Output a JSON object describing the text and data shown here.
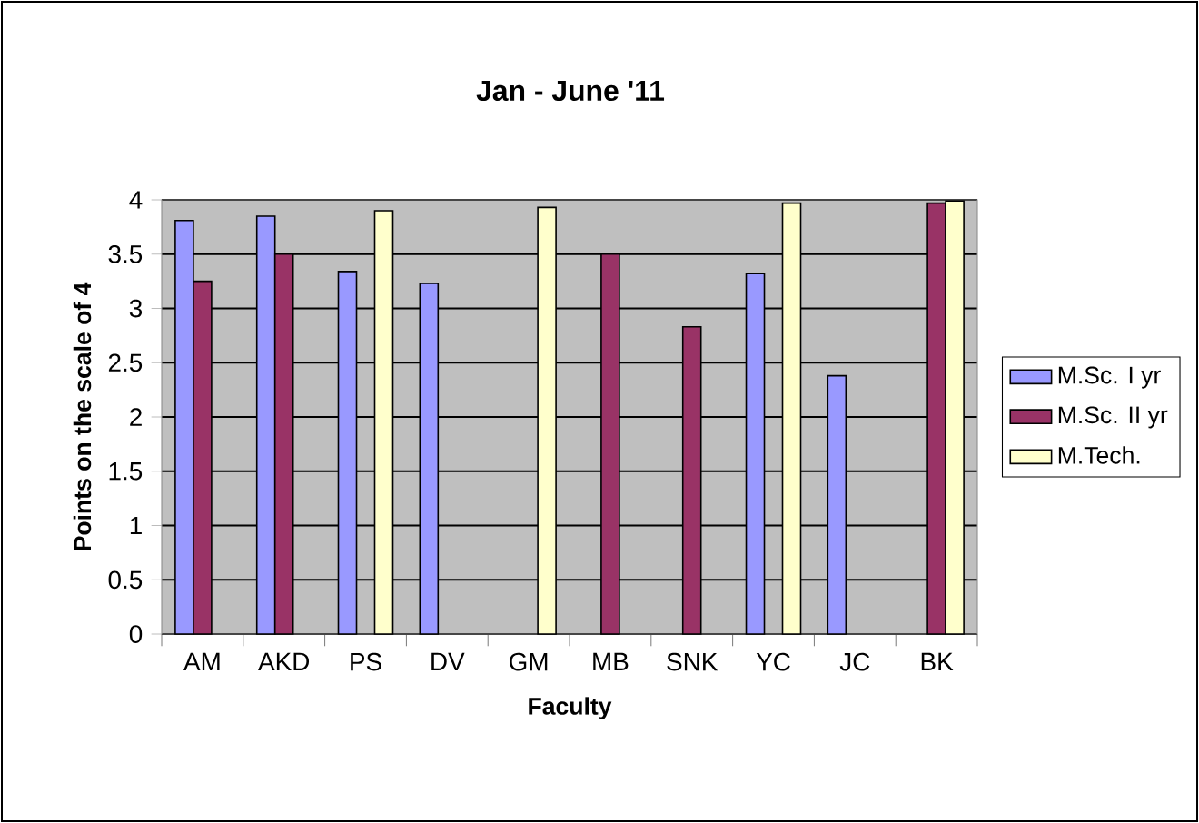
{
  "chart_data": {
    "type": "bar",
    "title": "Jan - June '11",
    "xlabel": "Faculty",
    "ylabel": "Points on the scale of 4",
    "categories": [
      "AM",
      "AKD",
      "PS",
      "DV",
      "GM",
      "MB",
      "SNK",
      "YC",
      "JC",
      "BK"
    ],
    "series": [
      {
        "name": "M.Sc. I yr",
        "color": "#9999ff",
        "values": [
          3.81,
          3.85,
          3.34,
          3.23,
          null,
          null,
          null,
          3.32,
          2.38,
          null
        ]
      },
      {
        "name": "M.Sc. II yr",
        "color": "#993366",
        "values": [
          3.25,
          3.5,
          null,
          null,
          null,
          3.5,
          2.83,
          null,
          null,
          3.97
        ]
      },
      {
        "name": "M.Tech.",
        "color": "#ffffcc",
        "values": [
          null,
          null,
          3.9,
          null,
          3.93,
          null,
          null,
          3.97,
          null,
          3.99
        ]
      }
    ],
    "ylim": [
      0,
      4
    ],
    "yticks": [
      0,
      0.5,
      1,
      1.5,
      2,
      2.5,
      3,
      3.5,
      4
    ],
    "grid": "y",
    "legend": "right"
  }
}
